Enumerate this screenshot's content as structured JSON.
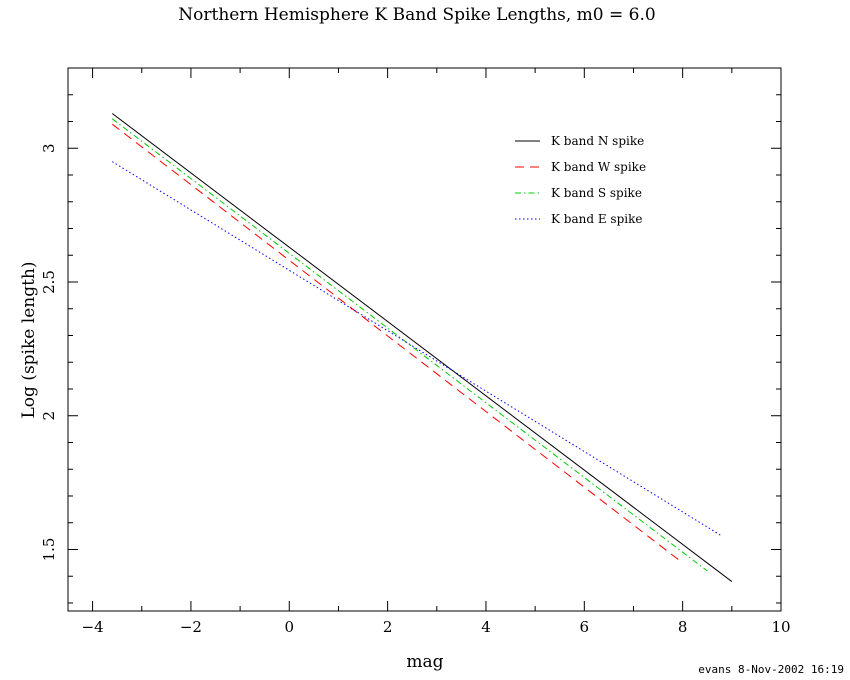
{
  "chart_data": {
    "type": "line",
    "title": "Northern Hemisphere K Band Spike Lengths, m0 = 6.0",
    "xlabel": "mag",
    "ylabel": "Log (spike length)",
    "xlim": [
      -4.5,
      10
    ],
    "ylim": [
      1.27,
      3.3
    ],
    "xticks": [
      -4,
      -2,
      0,
      2,
      4,
      6,
      8,
      10
    ],
    "xtick_labels": [
      "−4",
      "−2",
      "0",
      "2",
      "4",
      "6",
      "8",
      "10"
    ],
    "yticks": [
      1.5,
      2,
      2.5,
      3
    ],
    "ytick_labels": [
      "1.5",
      "2",
      "2.5",
      "3"
    ],
    "legend_position": "top-right",
    "grid": false,
    "series": [
      {
        "name": "K band N spike",
        "color": "#000000",
        "dash": "none",
        "x": [
          -3.6,
          9.0
        ],
        "y": [
          3.13,
          1.38
        ]
      },
      {
        "name": "K band W spike",
        "color": "#ff0000",
        "dash": "9,6",
        "x": [
          -3.6,
          8.0
        ],
        "y": [
          3.09,
          1.45
        ]
      },
      {
        "name": "K band S spike",
        "color": "#00cc00",
        "dash": "6,3,1.5,3",
        "x": [
          -3.6,
          8.5
        ],
        "y": [
          3.11,
          1.42
        ]
      },
      {
        "name": "K band E spike",
        "color": "#0000ff",
        "dash": "1.5,2.5",
        "x": [
          -3.6,
          8.8
        ],
        "y": [
          2.95,
          1.55
        ]
      }
    ]
  },
  "footer": "evans  8-Nov-2002 16:19"
}
